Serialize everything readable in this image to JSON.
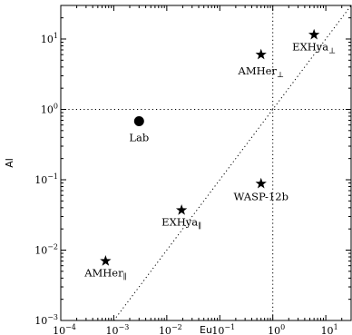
{
  "chart_data": {
    "type": "scatter",
    "title": "",
    "xlabel": "Eu",
    "ylabel": "Al",
    "xscale": "log",
    "yscale": "log",
    "xlim": [
      0.0001,
      30
    ],
    "ylim": [
      0.001,
      30
    ],
    "x_tick_labels": [
      {
        "value": 0.0001,
        "base": "10",
        "exp": "−4"
      },
      {
        "value": 0.001,
        "base": "10",
        "exp": "−3"
      },
      {
        "value": 0.01,
        "base": "10",
        "exp": "−2"
      },
      {
        "value": 0.1,
        "base": "10",
        "exp": "−1"
      },
      {
        "value": 1,
        "base": "10",
        "exp": "0"
      },
      {
        "value": 10,
        "base": "10",
        "exp": "1"
      }
    ],
    "y_tick_labels": [
      {
        "value": 0.001,
        "base": "10",
        "exp": "−3"
      },
      {
        "value": 0.01,
        "base": "10",
        "exp": "−2"
      },
      {
        "value": 0.1,
        "base": "10",
        "exp": "−1"
      },
      {
        "value": 1,
        "base": "10",
        "exp": "0"
      },
      {
        "value": 10,
        "base": "10",
        "exp": "1"
      }
    ],
    "reference_lines": {
      "x": 1,
      "y": 1,
      "diagonal": "y = x",
      "style": "dotted"
    },
    "grid": false,
    "legend": "none",
    "points": [
      {
        "name": "AMHer",
        "sub": "⊥",
        "x": 0.6,
        "y": 6.0,
        "marker": "star"
      },
      {
        "name": "EXHya",
        "sub": "⊥",
        "x": 6.0,
        "y": 11.5,
        "marker": "star"
      },
      {
        "name": "Lab",
        "sub": "",
        "x": 0.003,
        "y": 0.68,
        "marker": "circle"
      },
      {
        "name": "WASP-12b",
        "sub": "",
        "x": 0.6,
        "y": 0.088,
        "marker": "star"
      },
      {
        "name": "EXHya",
        "sub": "∥",
        "x": 0.019,
        "y": 0.037,
        "marker": "star"
      },
      {
        "name": "AMHer",
        "sub": "∥",
        "x": 0.0007,
        "y": 0.007,
        "marker": "star"
      }
    ]
  }
}
